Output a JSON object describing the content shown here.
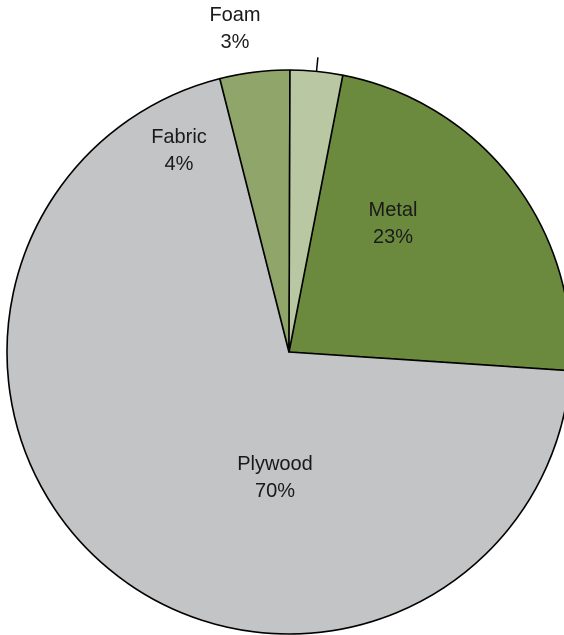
{
  "chart_data": {
    "type": "pie",
    "slices": [
      {
        "label": "Metal",
        "value_text": "23%",
        "value": 23,
        "color": "#6b8a3e"
      },
      {
        "label": "Plywood",
        "value_text": "70%",
        "value": 70,
        "color": "#c3c4c5"
      },
      {
        "label": "Fabric",
        "value_text": "4%",
        "value": 4,
        "color": "#8fa56a"
      },
      {
        "label": "Foam",
        "value_text": "3%",
        "value": 3,
        "color": "#b9c8a2"
      }
    ],
    "start_angle_deg": 11,
    "direction": "clockwise"
  }
}
